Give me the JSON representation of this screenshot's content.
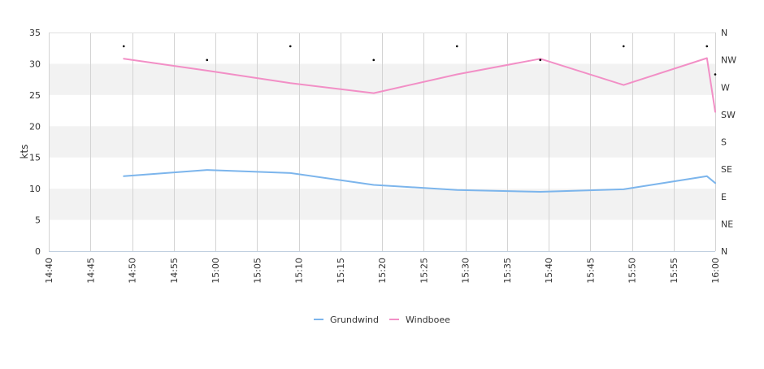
{
  "chart_data": {
    "type": "line",
    "title": "",
    "xlabel": "",
    "ylabel": "kts",
    "ylim": [
      0,
      35
    ],
    "y_ticks": [
      "0",
      "5",
      "10",
      "15",
      "20",
      "25",
      "30",
      "35"
    ],
    "x_tick_labels": [
      "14:40",
      "14:45",
      "14:50",
      "14:55",
      "15:00",
      "15:05",
      "15:10",
      "15:15",
      "15:20",
      "15:25",
      "15:30",
      "15:35",
      "15:40",
      "15:45",
      "15:50",
      "15:55",
      "16:00"
    ],
    "x_range": [
      "14:40",
      "16:00"
    ],
    "right_axis_labels": [
      "N",
      "NE",
      "E",
      "SE",
      "S",
      "SW",
      "W",
      "NW",
      "N"
    ],
    "grid": {
      "vertical": true,
      "alternating_bands": true
    },
    "legend_position": "bottom-center",
    "series": [
      {
        "name": "Grundwind",
        "color": "#7cb5ec",
        "points": [
          {
            "x": "14:49",
            "y": 12.0
          },
          {
            "x": "14:59",
            "y": 13.0
          },
          {
            "x": "15:09",
            "y": 12.5
          },
          {
            "x": "15:19",
            "y": 10.6
          },
          {
            "x": "15:29",
            "y": 9.8
          },
          {
            "x": "15:39",
            "y": 9.5
          },
          {
            "x": "15:49",
            "y": 9.9
          },
          {
            "x": "15:59",
            "y": 12.0
          },
          {
            "x": "16:00",
            "y": 10.9
          }
        ]
      },
      {
        "name": "Windboee",
        "color": "#f28fc6",
        "points": [
          {
            "x": "14:49",
            "y": 30.8
          },
          {
            "x": "14:59",
            "y": 28.9
          },
          {
            "x": "15:09",
            "y": 26.9
          },
          {
            "x": "15:19",
            "y": 25.3
          },
          {
            "x": "15:29",
            "y": 28.3
          },
          {
            "x": "15:39",
            "y": 30.8
          },
          {
            "x": "15:49",
            "y": 26.6
          },
          {
            "x": "15:59",
            "y": 30.9
          },
          {
            "x": "16:00",
            "y": 22.3
          }
        ]
      }
    ],
    "direction_markers": [
      {
        "x": "14:49",
        "y": 32.8
      },
      {
        "x": "14:59",
        "y": 30.6
      },
      {
        "x": "15:09",
        "y": 32.8
      },
      {
        "x": "15:19",
        "y": 30.6
      },
      {
        "x": "15:29",
        "y": 32.8
      },
      {
        "x": "15:39",
        "y": 30.6
      },
      {
        "x": "15:49",
        "y": 32.8
      },
      {
        "x": "15:59",
        "y": 32.8
      },
      {
        "x": "16:00",
        "y": 28.3
      }
    ]
  }
}
